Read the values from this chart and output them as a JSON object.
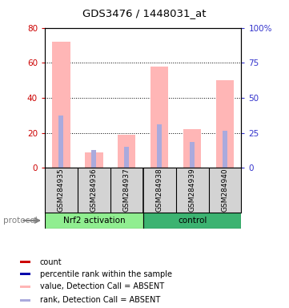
{
  "title": "GDS3476 / 1448031_at",
  "samples": [
    "GSM284935",
    "GSM284936",
    "GSM284937",
    "GSM284938",
    "GSM284939",
    "GSM284940"
  ],
  "group_labels": [
    "Nrf2 activation",
    "control"
  ],
  "pink_values": [
    72,
    9,
    19,
    58,
    22,
    50
  ],
  "blue_values": [
    30,
    10,
    12,
    25,
    15,
    21
  ],
  "left_ylim": [
    0,
    80
  ],
  "right_ylim": [
    0,
    100
  ],
  "left_yticks": [
    0,
    20,
    40,
    60,
    80
  ],
  "right_yticks": [
    0,
    25,
    50,
    75,
    100
  ],
  "left_yticklabels": [
    "0",
    "20",
    "40",
    "60",
    "80"
  ],
  "right_yticklabels": [
    "0",
    "25",
    "50",
    "75",
    "100%"
  ],
  "pink_color": "#FFB6B6",
  "blue_color": "#AAAADD",
  "red_color": "#CC0000",
  "dark_blue_color": "#0000AA",
  "left_axis_color": "#CC0000",
  "right_axis_color": "#3333CC",
  "bg_color": "#D3D3D3",
  "group1_color": "#90EE90",
  "group2_color": "#3CB371",
  "legend_labels": [
    "count",
    "percentile rank within the sample",
    "value, Detection Call = ABSENT",
    "rank, Detection Call = ABSENT"
  ],
  "legend_colors": [
    "#CC0000",
    "#0000AA",
    "#FFB6B6",
    "#AAAADD"
  ]
}
